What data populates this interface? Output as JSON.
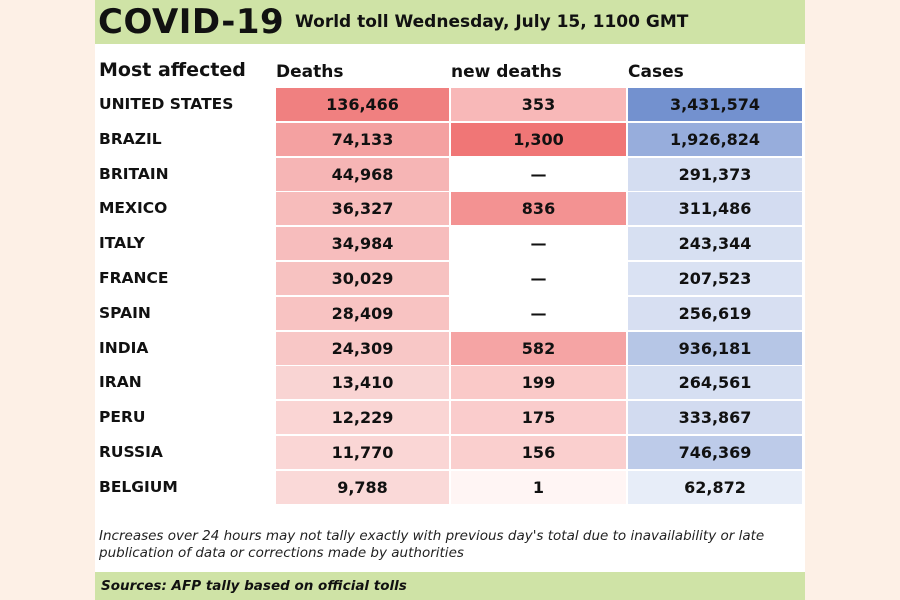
{
  "header": {
    "title": "COVID-19",
    "subtitle": "World toll Wednesday, July 15, 1100 GMT"
  },
  "columns": {
    "country": "Most affected",
    "deaths": "Deaths",
    "new_deaths": "new deaths",
    "cases": "Cases"
  },
  "note": "Increases over 24 hours may not tally exactly with previous day's total due to inavailability or late publication of data or corrections made by authorities",
  "source": "Sources: AFP tally based on official tolls",
  "colors": {
    "header_bg": "#cfe3a6",
    "deaths_hi": "#f08080",
    "deaths_lo": "#fdf4f3",
    "newdeaths_hi": "#f07676",
    "newdeaths_lo": "#fff7f6",
    "cases_hi": "#7391cf",
    "cases_lo": "#f6f8fd"
  },
  "chart_data": {
    "type": "table",
    "title": "COVID-19 World toll Wednesday, July 15, 1100 GMT",
    "columns": [
      "Most affected",
      "Deaths",
      "new deaths",
      "Cases"
    ],
    "rows": [
      {
        "country": "UNITED STATES",
        "deaths": "136,466",
        "new_deaths": "353",
        "cases": "3,431,574",
        "deaths_n": 136466,
        "new_n": 353,
        "cases_n": 3431574
      },
      {
        "country": "BRAZIL",
        "deaths": "74,133",
        "new_deaths": "1,300",
        "cases": "1,926,824",
        "deaths_n": 74133,
        "new_n": 1300,
        "cases_n": 1926824
      },
      {
        "country": "BRITAIN",
        "deaths": "44,968",
        "new_deaths": "—",
        "cases": "291,373",
        "deaths_n": 44968,
        "new_n": 0,
        "cases_n": 291373
      },
      {
        "country": "MEXICO",
        "deaths": "36,327",
        "new_deaths": "836",
        "cases": "311,486",
        "deaths_n": 36327,
        "new_n": 836,
        "cases_n": 311486
      },
      {
        "country": "ITALY",
        "deaths": "34,984",
        "new_deaths": "—",
        "cases": "243,344",
        "deaths_n": 34984,
        "new_n": 0,
        "cases_n": 243344
      },
      {
        "country": "FRANCE",
        "deaths": "30,029",
        "new_deaths": "—",
        "cases": "207,523",
        "deaths_n": 30029,
        "new_n": 0,
        "cases_n": 207523
      },
      {
        "country": "SPAIN",
        "deaths": "28,409",
        "new_deaths": "—",
        "cases": "256,619",
        "deaths_n": 28409,
        "new_n": 0,
        "cases_n": 256619
      },
      {
        "country": "INDIA",
        "deaths": "24,309",
        "new_deaths": "582",
        "cases": "936,181",
        "deaths_n": 24309,
        "new_n": 582,
        "cases_n": 936181
      },
      {
        "country": "IRAN",
        "deaths": "13,410",
        "new_deaths": "199",
        "cases": "264,561",
        "deaths_n": 13410,
        "new_n": 199,
        "cases_n": 264561
      },
      {
        "country": "PERU",
        "deaths": "12,229",
        "new_deaths": "175",
        "cases": "333,867",
        "deaths_n": 12229,
        "new_n": 175,
        "cases_n": 333867
      },
      {
        "country": "RUSSIA",
        "deaths": "11,770",
        "new_deaths": "156",
        "cases": "746,369",
        "deaths_n": 11770,
        "new_n": 156,
        "cases_n": 746369
      },
      {
        "country": "BELGIUM",
        "deaths": "9,788",
        "new_deaths": "1",
        "cases": "62,872",
        "deaths_n": 9788,
        "new_n": 1,
        "cases_n": 62872
      }
    ]
  }
}
